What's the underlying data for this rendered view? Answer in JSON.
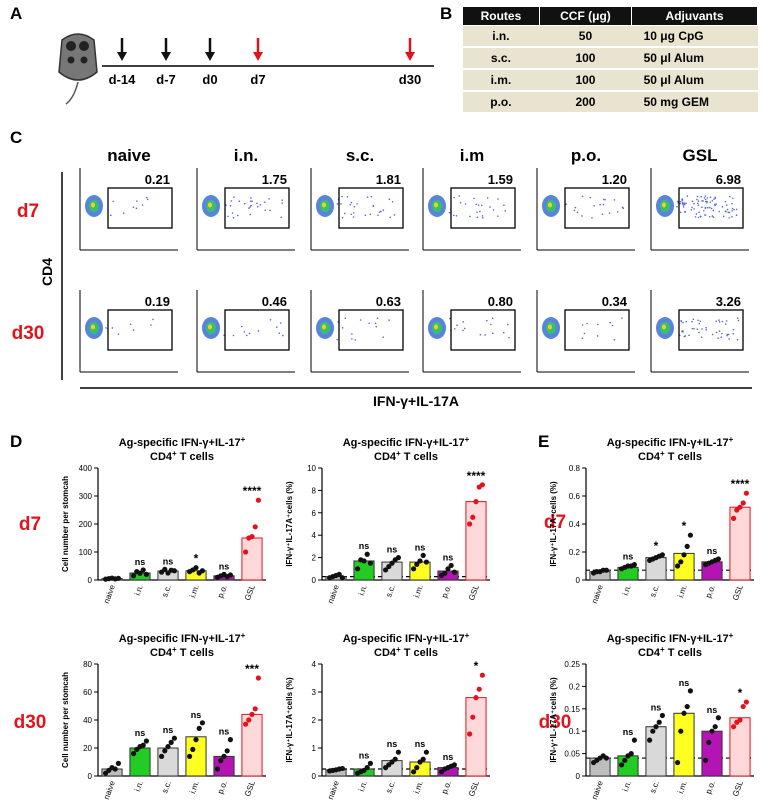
{
  "panels": {
    "a": "A",
    "b": "B",
    "c": "C",
    "d": "D",
    "e": "E"
  },
  "timeline": {
    "days": [
      {
        "label": "d-14",
        "type": "immunization"
      },
      {
        "label": "d-7",
        "type": "immunization"
      },
      {
        "label": "d0",
        "type": "immunization"
      },
      {
        "label": "d7",
        "type": "sacrifice"
      },
      {
        "label": "d30",
        "type": "sacrifice"
      }
    ],
    "colors": {
      "immunization": "#111111",
      "sacrifice": "#e0141e"
    }
  },
  "routes_table": {
    "headers": [
      "Routes",
      "CCF (μg)",
      "Adjuvants"
    ],
    "rows": [
      [
        "i.n.",
        "50",
        "10 μg CpG"
      ],
      [
        "s.c.",
        "100",
        "50 μl Alum"
      ],
      [
        "i.m.",
        "100",
        "50 μl Alum"
      ],
      [
        "p.o.",
        "200",
        "50 mg GEM"
      ]
    ]
  },
  "flow": {
    "columns": [
      "naive",
      "i.n.",
      "s.c.",
      "i.m",
      "p.o.",
      "GSL"
    ],
    "rows": [
      "d7",
      "d30"
    ],
    "values": [
      [
        "0.21",
        "1.75",
        "1.81",
        "1.59",
        "1.20",
        "6.98"
      ],
      [
        "0.19",
        "0.46",
        "0.63",
        "0.80",
        "0.34",
        "3.26"
      ]
    ],
    "y_label": "CD4",
    "x_label": "IFN-γ+IL-17A"
  },
  "chart_data": [
    {
      "id": "D-d7-count",
      "type": "bar",
      "panel": "D",
      "row": "d7",
      "title": "Ag-specific IFN-γ+IL-17",
      "title_sup": "+",
      "subtitle": "CD4",
      "subtitle_sup": "+",
      "subtitle_tail": " T cells",
      "ylabel": "Cell number per stomcah",
      "ylim": [
        0,
        400
      ],
      "yticks": [
        0,
        100,
        200,
        300,
        400
      ],
      "categories": [
        "naive",
        "i.n.",
        "s.c.",
        "i.m.",
        "p.o.",
        "GSL"
      ],
      "values": [
        5,
        25,
        32,
        33,
        15,
        150
      ],
      "points": [
        [
          3,
          5,
          7,
          4,
          6
        ],
        [
          15,
          30,
          24,
          36,
          20
        ],
        [
          28,
          38,
          25,
          35,
          33
        ],
        [
          30,
          36,
          44,
          25,
          33
        ],
        [
          10,
          15,
          20,
          12,
          18
        ],
        [
          100,
          150,
          155,
          190,
          285
        ]
      ],
      "annotations": [
        "",
        "ns",
        "ns",
        "*",
        "ns",
        "****"
      ],
      "baseline": null
    },
    {
      "id": "D-d7-pct",
      "type": "bar",
      "panel": "D",
      "row": "d7",
      "title": "Ag-specific IFN-γ+IL-17",
      "title_sup": "+",
      "subtitle": "CD4",
      "subtitle_sup": "+",
      "subtitle_tail": " T cells",
      "ylabel": "IFN-γ⁺IL-17A⁺cells (%)",
      "ylim": [
        0,
        10
      ],
      "yticks": [
        0,
        2,
        4,
        6,
        8,
        10
      ],
      "categories": [
        "naive",
        "i.n.",
        "s.c.",
        "i.m.",
        "p.o.",
        "GSL"
      ],
      "values": [
        0.3,
        1.7,
        1.6,
        1.6,
        0.8,
        7.0
      ],
      "points": [
        [
          0.2,
          0.3,
          0.4,
          0.5,
          0.2
        ],
        [
          1.0,
          1.8,
          1.7,
          2.3,
          1.5
        ],
        [
          0.9,
          1.2,
          1.5,
          1.8,
          2.0
        ],
        [
          1.0,
          1.4,
          1.7,
          2.2,
          1.6
        ],
        [
          0.4,
          0.6,
          1.0,
          1.3,
          0.7
        ],
        [
          5.0,
          5.6,
          7.0,
          8.3,
          8.5
        ]
      ],
      "annotations": [
        "",
        "ns",
        "ns",
        "ns",
        "ns",
        "****"
      ],
      "baseline": 0.3
    },
    {
      "id": "E-d7-pct",
      "type": "bar",
      "panel": "E",
      "row": "d7",
      "title": "Ag-specific IFN-γ+IL-17",
      "title_sup": "+",
      "subtitle": "CD4",
      "subtitle_sup": "+",
      "subtitle_tail": " T cells",
      "ylabel": "IFN-γ⁺IL-17A⁺cells (%)",
      "ylim": [
        0,
        0.8
      ],
      "yticks": [
        0.0,
        0.2,
        0.4,
        0.6,
        0.8
      ],
      "categories": [
        "naive",
        "i.n.",
        "s.c.",
        "i.m.",
        "p.o.",
        "GSL"
      ],
      "values": [
        0.06,
        0.09,
        0.16,
        0.19,
        0.13,
        0.52
      ],
      "points": [
        [
          0.05,
          0.06,
          0.06,
          0.07,
          0.07
        ],
        [
          0.08,
          0.09,
          0.1,
          0.1,
          0.11
        ],
        [
          0.14,
          0.15,
          0.16,
          0.17,
          0.18
        ],
        [
          0.1,
          0.13,
          0.18,
          0.24,
          0.32
        ],
        [
          0.11,
          0.12,
          0.13,
          0.14,
          0.15
        ],
        [
          0.44,
          0.5,
          0.52,
          0.55,
          0.62
        ]
      ],
      "annotations": [
        "",
        "ns",
        "*",
        "*",
        "ns",
        "****"
      ],
      "baseline": 0.07
    },
    {
      "id": "D-d30-count",
      "type": "bar",
      "panel": "D",
      "row": "d30",
      "title": "Ag-specific IFN-γ+IL-17",
      "title_sup": "+",
      "subtitle": "CD4",
      "subtitle_sup": "+",
      "subtitle_tail": " T cells",
      "ylabel": "Cell number per stomcah",
      "ylim": [
        0,
        80
      ],
      "yticks": [
        0,
        20,
        40,
        60,
        80
      ],
      "categories": [
        "naive",
        "i.n.",
        "s.c.",
        "i.m.",
        "p.o.",
        "GSL"
      ],
      "values": [
        5,
        20,
        20,
        28,
        14,
        44
      ],
      "points": [
        [
          2,
          4,
          6,
          5,
          9
        ],
        [
          16,
          19,
          21,
          22,
          25
        ],
        [
          14,
          18,
          21,
          24,
          27
        ],
        [
          14,
          19,
          26,
          34,
          38
        ],
        [
          5,
          11,
          14,
          18,
          26
        ],
        [
          37,
          40,
          44,
          48,
          70
        ]
      ],
      "annotations": [
        "",
        "ns",
        "ns",
        "ns",
        "ns",
        "***"
      ],
      "baseline": null
    },
    {
      "id": "D-d30-pct",
      "type": "bar",
      "panel": "D",
      "row": "d30",
      "title": "Ag-specific IFN-γ+IL-17",
      "title_sup": "+",
      "subtitle": "CD4",
      "subtitle_sup": "+",
      "subtitle_tail": " T cells",
      "ylabel": "IFN-γ⁺IL-17A⁺cells (%)",
      "ylim": [
        0,
        4
      ],
      "yticks": [
        0,
        1,
        2,
        3,
        4
      ],
      "categories": [
        "naive",
        "i.n.",
        "s.c.",
        "i.m.",
        "p.o.",
        "GSL"
      ],
      "values": [
        0.22,
        0.25,
        0.55,
        0.5,
        0.3,
        2.8
      ],
      "points": [
        [
          0.18,
          0.2,
          0.22,
          0.25,
          0.27
        ],
        [
          0.1,
          0.15,
          0.2,
          0.3,
          0.45
        ],
        [
          0.3,
          0.4,
          0.5,
          0.6,
          0.85
        ],
        [
          0.15,
          0.3,
          0.5,
          0.6,
          0.85
        ],
        [
          0.15,
          0.25,
          0.3,
          0.35,
          0.4
        ],
        [
          1.5,
          2.1,
          2.8,
          3.1,
          3.6
        ]
      ],
      "annotations": [
        "",
        "ns",
        "ns",
        "ns",
        "ns",
        "*"
      ],
      "baseline": 0.25
    },
    {
      "id": "E-d30-pct",
      "type": "bar",
      "panel": "E",
      "row": "d30",
      "title": "Ag-specific IFN-γ+IL-17",
      "title_sup": "+",
      "subtitle": "CD4",
      "subtitle_sup": "+",
      "subtitle_tail": " T cells",
      "ylabel": "IFN-γ⁺IL-17A⁺cells (%)",
      "ylim": [
        0,
        0.25
      ],
      "yticks": [
        0.0,
        0.05,
        0.1,
        0.15,
        0.2,
        0.25
      ],
      "categories": [
        "naive",
        "i.n.",
        "s.c.",
        "i.m.",
        "p.o.",
        "GSL"
      ],
      "values": [
        0.04,
        0.045,
        0.11,
        0.14,
        0.1,
        0.13
      ],
      "points": [
        [
          0.03,
          0.035,
          0.04,
          0.045,
          0.04
        ],
        [
          0.025,
          0.035,
          0.045,
          0.05,
          0.08
        ],
        [
          0.08,
          0.1,
          0.11,
          0.12,
          0.135
        ],
        [
          0.03,
          0.1,
          0.14,
          0.155,
          0.19
        ],
        [
          0.035,
          0.075,
          0.1,
          0.11,
          0.13
        ],
        [
          0.11,
          0.12,
          0.125,
          0.155,
          0.165
        ]
      ],
      "annotations": [
        "",
        "ns",
        "ns",
        "ns",
        "ns",
        "*"
      ],
      "baseline": 0.04
    }
  ],
  "bar_colors": {
    "naive": "#bdbdbd",
    "i.n.": "#22cc22",
    "s.c.": "#d9d9d9",
    "i.m.": "#ffff22",
    "p.o.": "#b414b4",
    "GSL": "#ffd9d9"
  },
  "row_color": "#e0141e"
}
